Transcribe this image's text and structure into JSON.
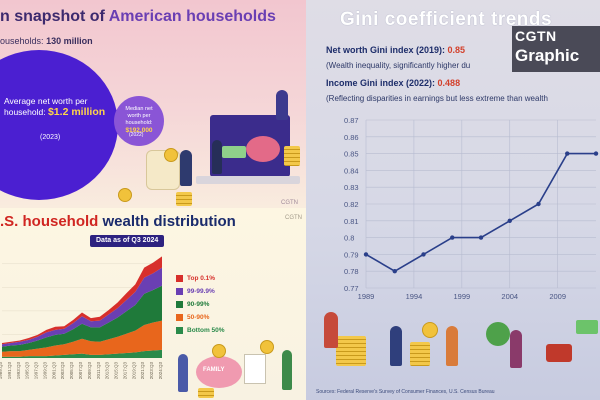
{
  "left_top": {
    "title_prefix": "n snapshot of",
    "title_highlight": "American households",
    "households_label": "ouseholds:",
    "households_value": "130 million",
    "avg_line1": "Average net worth per",
    "avg_line2_prefix": "household:",
    "avg_value": "$1.2 million",
    "avg_year": "(2023)",
    "median_line1": "Median net",
    "median_line2": "worth per",
    "median_line3": "household:",
    "median_value": "$192,000",
    "median_year": "(2022)",
    "watermark": "CGTN"
  },
  "left_bottom": {
    "title_red": ".S. household",
    "title_dark": "wealth distribution",
    "badge": "Data as of Q3 2024",
    "watermark": "CGTN",
    "family_label": "FAMILY",
    "legend": [
      {
        "label": "Top 0.1%",
        "color": "#d72f2b"
      },
      {
        "label": "99-99.9%",
        "color": "#6a3fb3"
      },
      {
        "label": "90-99%",
        "color": "#1f7a3a"
      },
      {
        "label": "50-90%",
        "color": "#e8661c"
      },
      {
        "label": "Bottom 50%",
        "color": "#2a8a4a"
      }
    ]
  },
  "right": {
    "title": "Gini coefficient trends",
    "networth_label": "Net worth Gini index (2019):",
    "networth_value": "0.85",
    "networth_note": "(Wealth inequality, significantly higher du",
    "income_label": "Income Gini index (2022):",
    "income_value": "0.488",
    "income_note": "(Reflecting disparities in earnings but less extreme than wealth",
    "logo_top": "CGTN",
    "logo_bottom": "Graphic",
    "source": "Sources: Federal Reserve's Survey of Consumer Finances, U.S. Census Bureau"
  },
  "chart_data": [
    {
      "type": "line",
      "x": [
        1989,
        1992,
        1995,
        1998,
        2001,
        2004,
        2007,
        2010,
        2013
      ],
      "series": [
        {
          "values": [
            0.79,
            0.78,
            0.79,
            0.8,
            0.8,
            0.81,
            0.82,
            0.85,
            0.85
          ]
        }
      ],
      "xticks": [
        1989,
        1994,
        1999,
        2004,
        2009
      ],
      "yticks": [
        0.77,
        0.78,
        0.79,
        0.8,
        0.81,
        0.82,
        0.83,
        0.84,
        0.85,
        0.86,
        0.87
      ],
      "ytick_labels": [
        "0.77",
        "0.78",
        "0.79",
        "0.8",
        "0.81",
        "0.82",
        "0.83",
        "0.84",
        "0.85",
        "0.86",
        "0.87"
      ],
      "xlim": [
        1989,
        2013
      ],
      "ylim": [
        0.77,
        0.87
      ],
      "grid": true,
      "color": "#2a3f8a"
    },
    {
      "type": "area",
      "x_labels": [
        "1989:Q3",
        "1991:Q3",
        "1993:Q3",
        "1995:Q3",
        "1997:Q3",
        "1999:Q3",
        "2001:Q3",
        "2003:Q3",
        "2005:Q3",
        "2007:Q3",
        "2009:Q3",
        "2011:Q3",
        "2013:Q3",
        "2015:Q3",
        "2017:Q3",
        "2019:Q3",
        "2021:Q3",
        "2023:Q3",
        "2024:Q3"
      ],
      "series": [
        {
          "name": "Bottom 50%",
          "values": [
            2,
            2,
            2,
            3,
            3,
            3,
            4,
            5,
            6,
            7,
            5,
            5,
            6,
            7,
            8,
            9,
            11,
            12,
            13
          ],
          "color": "#2a8a4a"
        },
        {
          "name": "50-90%",
          "values": [
            8,
            9,
            9,
            10,
            12,
            14,
            16,
            17,
            20,
            24,
            22,
            21,
            24,
            27,
            31,
            35,
            42,
            45,
            47
          ],
          "color": "#e8661c"
        },
        {
          "name": "90-99%",
          "values": [
            8,
            9,
            10,
            11,
            13,
            16,
            17,
            17,
            20,
            24,
            22,
            23,
            27,
            31,
            36,
            41,
            50,
            52,
            56
          ],
          "color": "#1f7a3a"
        },
        {
          "name": "99-99.9%",
          "values": [
            4,
            4,
            5,
            5,
            6,
            8,
            8,
            8,
            10,
            12,
            10,
            11,
            13,
            15,
            18,
            21,
            26,
            27,
            29
          ],
          "color": "#6a3fb3"
        },
        {
          "name": "Top 0.1%",
          "values": [
            2,
            2,
            2,
            3,
            3,
            4,
            5,
            4,
            5,
            6,
            5,
            6,
            7,
            9,
            11,
            12,
            16,
            17,
            18
          ],
          "color": "#d72f2b"
        }
      ],
      "ylim": [
        0,
        170
      ]
    }
  ]
}
